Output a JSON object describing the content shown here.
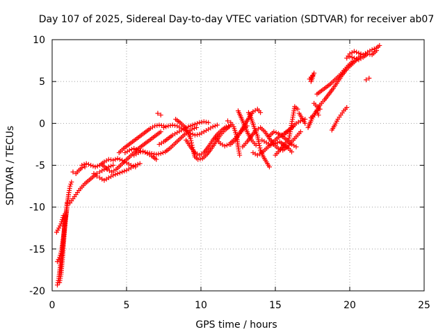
{
  "chart_data": {
    "type": "scatter",
    "title": "Day 107 of 2025, Sidereal Day-to-day VTEC variation (SDTVAR) for receiver ab07",
    "xlabel": "GPS time / hours",
    "ylabel": "SDTVAR / TECUs",
    "xlim": [
      0,
      25
    ],
    "ylim": [
      -20,
      10
    ],
    "xticks": [
      0,
      5,
      10,
      15,
      20,
      25
    ],
    "yticks": [
      -20,
      -15,
      -10,
      -5,
      0,
      5,
      10
    ],
    "grid": true,
    "legend": "none",
    "marker": "plus",
    "color": "#ff0000",
    "tracks": [
      [
        [
          0.35,
          -19.3
        ],
        [
          0.45,
          -18.5
        ],
        [
          0.55,
          -17.0
        ],
        [
          0.65,
          -15.5
        ],
        [
          0.75,
          -14.0
        ],
        [
          0.85,
          -12.0
        ],
        [
          0.95,
          -10.5
        ],
        [
          1.0,
          -9.5
        ]
      ],
      [
        [
          0.5,
          -19.0
        ],
        [
          0.6,
          -18.0
        ],
        [
          0.7,
          -16.0
        ],
        [
          0.8,
          -13.5
        ],
        [
          0.9,
          -11.5
        ],
        [
          1.0,
          -10.0
        ],
        [
          1.1,
          -8.5
        ],
        [
          1.2,
          -7.5
        ],
        [
          1.3,
          -7.0
        ]
      ],
      [
        [
          0.3,
          -13.0
        ],
        [
          0.45,
          -12.5
        ],
        [
          0.6,
          -12.0
        ],
        [
          0.75,
          -11.0
        ]
      ],
      [
        [
          0.35,
          -16.5
        ],
        [
          0.5,
          -16.0
        ],
        [
          0.65,
          -15.0
        ],
        [
          0.8,
          -13.0
        ],
        [
          0.9,
          -11.0
        ]
      ],
      [
        [
          1.2,
          -9.5
        ],
        [
          1.4,
          -9.0
        ],
        [
          1.6,
          -8.5
        ],
        [
          1.8,
          -8.0
        ],
        [
          2.0,
          -7.6
        ],
        [
          2.2,
          -7.2
        ],
        [
          2.4,
          -6.9
        ],
        [
          2.6,
          -6.6
        ],
        [
          2.8,
          -6.3
        ],
        [
          3.0,
          -6.0
        ],
        [
          3.2,
          -5.8
        ],
        [
          3.5,
          -5.5
        ],
        [
          3.8,
          -5.2
        ],
        [
          4.1,
          -5.0
        ]
      ],
      [
        [
          1.4,
          -5.8
        ],
        [
          1.6,
          -6.0
        ],
        [
          1.8,
          -5.6
        ],
        [
          2.0,
          -5.3
        ],
        [
          2.2,
          -5.2
        ]
      ],
      [
        [
          2.0,
          -5.0
        ],
        [
          2.3,
          -4.8
        ],
        [
          2.6,
          -5.0
        ],
        [
          2.9,
          -5.2
        ],
        [
          3.2,
          -5.0
        ],
        [
          3.5,
          -4.6
        ],
        [
          3.8,
          -4.3
        ],
        [
          4.1,
          -4.4
        ],
        [
          4.4,
          -4.2
        ],
        [
          4.7,
          -4.4
        ],
        [
          5.0,
          -4.7
        ],
        [
          5.3,
          -5.0
        ],
        [
          5.6,
          -5.2
        ]
      ],
      [
        [
          2.8,
          -6.0
        ],
        [
          3.0,
          -6.3
        ],
        [
          3.2,
          -6.5
        ],
        [
          3.5,
          -6.8
        ],
        [
          3.8,
          -6.5
        ],
        [
          4.1,
          -6.2
        ],
        [
          4.4,
          -6.0
        ],
        [
          4.7,
          -5.8
        ],
        [
          5.0,
          -5.6
        ],
        [
          5.3,
          -5.3
        ],
        [
          5.6,
          -5.0
        ],
        [
          5.9,
          -4.8
        ]
      ],
      [
        [
          3.4,
          -5.0
        ],
        [
          3.7,
          -5.5
        ],
        [
          4.0,
          -5.8
        ],
        [
          4.3,
          -5.5
        ],
        [
          4.6,
          -5.0
        ],
        [
          4.9,
          -4.5
        ],
        [
          5.2,
          -4.0
        ],
        [
          5.5,
          -3.5
        ],
        [
          5.8,
          -3.0
        ],
        [
          6.1,
          -2.6
        ],
        [
          6.4,
          -2.2
        ],
        [
          6.7,
          -1.8
        ],
        [
          7.0,
          -1.4
        ],
        [
          7.3,
          -1.0
        ]
      ],
      [
        [
          4.5,
          -3.5
        ],
        [
          4.8,
          -3.0
        ],
        [
          5.1,
          -2.6
        ],
        [
          5.4,
          -2.2
        ],
        [
          5.7,
          -1.8
        ],
        [
          6.0,
          -1.4
        ],
        [
          6.3,
          -1.0
        ],
        [
          6.6,
          -0.6
        ],
        [
          6.9,
          -0.3
        ],
        [
          7.2,
          -0.2
        ],
        [
          7.5,
          -0.3
        ]
      ],
      [
        [
          4.9,
          -3.5
        ],
        [
          5.2,
          -3.2
        ],
        [
          5.5,
          -3.0
        ],
        [
          5.8,
          -3.2
        ],
        [
          6.1,
          -3.4
        ],
        [
          6.4,
          -3.5
        ],
        [
          6.7,
          -3.6
        ],
        [
          7.0,
          -3.7
        ],
        [
          7.3,
          -3.6
        ],
        [
          7.6,
          -3.4
        ],
        [
          7.9,
          -3.0
        ],
        [
          8.2,
          -2.5
        ],
        [
          8.5,
          -2.0
        ],
        [
          8.8,
          -1.5
        ],
        [
          9.1,
          -1.0
        ],
        [
          9.4,
          -0.7
        ],
        [
          9.7,
          -0.5
        ]
      ],
      [
        [
          5.5,
          -3.8
        ],
        [
          5.8,
          -3.5
        ],
        [
          6.1,
          -3.3
        ],
        [
          6.4,
          -3.6
        ],
        [
          6.7,
          -3.9
        ],
        [
          7.0,
          -4.3
        ]
      ],
      [
        [
          7.1,
          1.2
        ],
        [
          7.3,
          1.0
        ]
      ],
      [
        [
          7.5,
          -0.5
        ],
        [
          7.8,
          -0.3
        ],
        [
          8.1,
          -0.2
        ],
        [
          8.4,
          -0.3
        ],
        [
          8.7,
          -0.6
        ],
        [
          9.0,
          -0.9
        ],
        [
          9.3,
          -1.2
        ],
        [
          9.6,
          -1.4
        ],
        [
          9.9,
          -1.3
        ],
        [
          10.2,
          -1.0
        ],
        [
          10.5,
          -0.7
        ],
        [
          10.8,
          -0.4
        ],
        [
          11.1,
          -0.2
        ]
      ],
      [
        [
          7.2,
          -2.5
        ],
        [
          7.5,
          -2.2
        ],
        [
          7.8,
          -1.8
        ],
        [
          8.1,
          -1.4
        ],
        [
          8.4,
          -1.1
        ],
        [
          8.7,
          -0.8
        ],
        [
          9.0,
          -0.5
        ],
        [
          9.3,
          -0.3
        ],
        [
          9.6,
          -0.1
        ],
        [
          9.9,
          0.1
        ],
        [
          10.2,
          0.2
        ],
        [
          10.5,
          0.1
        ]
      ],
      [
        [
          8.3,
          0.5
        ],
        [
          8.6,
          0.1
        ],
        [
          8.9,
          -0.4
        ],
        [
          9.1,
          -1.0
        ],
        [
          9.3,
          -1.8
        ],
        [
          9.4,
          -2.6
        ],
        [
          9.5,
          -3.4
        ],
        [
          9.6,
          -4.0
        ],
        [
          9.8,
          -4.3
        ],
        [
          10.1,
          -4.2
        ],
        [
          10.4,
          -3.7
        ],
        [
          10.7,
          -3.0
        ],
        [
          11.0,
          -2.2
        ],
        [
          11.3,
          -1.4
        ],
        [
          11.6,
          -0.8
        ],
        [
          11.9,
          -0.4
        ]
      ],
      [
        [
          9.0,
          -2.0
        ],
        [
          9.3,
          -2.8
        ],
        [
          9.6,
          -3.5
        ],
        [
          9.9,
          -3.8
        ],
        [
          10.2,
          -3.5
        ],
        [
          10.5,
          -2.8
        ],
        [
          10.8,
          -2.0
        ],
        [
          11.1,
          -1.3
        ],
        [
          11.4,
          -0.8
        ],
        [
          11.7,
          -0.4
        ],
        [
          12.0,
          -0.2
        ]
      ],
      [
        [
          11.0,
          -1.8
        ],
        [
          11.3,
          -2.4
        ],
        [
          11.6,
          -2.7
        ],
        [
          11.9,
          -2.5
        ],
        [
          12.2,
          -2.0
        ],
        [
          12.5,
          -1.4
        ],
        [
          12.8,
          -0.8
        ],
        [
          13.1,
          -0.3
        ]
      ],
      [
        [
          11.8,
          0.3
        ],
        [
          12.0,
          0.1
        ],
        [
          12.2,
          -0.4
        ],
        [
          12.4,
          -1.5
        ],
        [
          12.5,
          -2.8
        ],
        [
          12.6,
          -3.8
        ]
      ],
      [
        [
          12.0,
          -2.5
        ],
        [
          12.3,
          -2.0
        ],
        [
          12.6,
          -1.2
        ],
        [
          12.9,
          -0.3
        ],
        [
          13.2,
          0.6
        ],
        [
          13.5,
          1.4
        ],
        [
          13.8,
          1.7
        ],
        [
          14.0,
          1.3
        ]
      ],
      [
        [
          12.5,
          1.5
        ],
        [
          12.8,
          0.3
        ],
        [
          13.1,
          -1.0
        ],
        [
          13.4,
          -2.0
        ],
        [
          13.7,
          -2.6
        ]
      ],
      [
        [
          12.8,
          -2.8
        ],
        [
          13.1,
          -2.2
        ],
        [
          13.4,
          -1.5
        ],
        [
          13.7,
          -0.8
        ],
        [
          14.0,
          -0.5
        ],
        [
          14.3,
          -1.0
        ],
        [
          14.6,
          -1.8
        ],
        [
          14.9,
          -2.5
        ],
        [
          15.2,
          -3.0
        ],
        [
          15.5,
          -3.2
        ],
        [
          15.8,
          -2.8
        ],
        [
          16.1,
          -2.2
        ],
        [
          16.4,
          -1.6
        ],
        [
          16.7,
          -1.0
        ]
      ],
      [
        [
          13.2,
          1.3
        ],
        [
          13.4,
          0.5
        ],
        [
          13.6,
          -0.6
        ],
        [
          13.8,
          -1.5
        ],
        [
          13.9,
          -2.4
        ],
        [
          14.0,
          -3.2
        ],
        [
          14.2,
          -4.0
        ],
        [
          14.4,
          -4.6
        ],
        [
          14.6,
          -5.2
        ]
      ],
      [
        [
          13.5,
          -3.5
        ],
        [
          13.8,
          -3.8
        ],
        [
          14.1,
          -3.5
        ],
        [
          14.4,
          -3.0
        ],
        [
          14.7,
          -2.5
        ],
        [
          15.0,
          -2.0
        ],
        [
          15.3,
          -1.5
        ],
        [
          15.6,
          -1.2
        ],
        [
          15.9,
          -0.8
        ],
        [
          16.2,
          -0.4
        ]
      ],
      [
        [
          14.1,
          -2.0
        ],
        [
          14.4,
          -2.3
        ],
        [
          14.7,
          -2.6
        ],
        [
          15.0,
          -2.4
        ],
        [
          15.3,
          -2.2
        ],
        [
          15.6,
          -2.6
        ],
        [
          15.9,
          -3.0
        ],
        [
          16.1,
          -3.4
        ]
      ],
      [
        [
          14.6,
          -1.5
        ],
        [
          14.9,
          -1.0
        ],
        [
          15.2,
          -1.2
        ],
        [
          15.5,
          -1.6
        ],
        [
          15.8,
          -2.0
        ],
        [
          16.1,
          -2.5
        ],
        [
          16.4,
          -2.8
        ]
      ],
      [
        [
          15.0,
          -3.8
        ],
        [
          15.3,
          -3.2
        ],
        [
          15.6,
          -2.5
        ],
        [
          15.9,
          -2.0
        ],
        [
          16.0,
          -1.0
        ],
        [
          16.1,
          0.0
        ],
        [
          16.2,
          1.0
        ],
        [
          16.3,
          2.0
        ],
        [
          16.5,
          1.7
        ]
      ],
      [
        [
          15.5,
          -1.5
        ],
        [
          15.8,
          -1.0
        ],
        [
          16.1,
          -0.5
        ],
        [
          16.4,
          0.0
        ],
        [
          16.7,
          0.3
        ],
        [
          17.0,
          0.5
        ]
      ],
      [
        [
          16.6,
          1.2
        ],
        [
          16.8,
          0.6
        ],
        [
          17.0,
          0.0
        ]
      ],
      [
        [
          17.3,
          5.3
        ],
        [
          17.5,
          5.7
        ],
        [
          17.6,
          6.0
        ],
        [
          17.4,
          5.0
        ]
      ],
      [
        [
          17.2,
          -0.5
        ],
        [
          17.4,
          0.3
        ],
        [
          17.6,
          1.0
        ],
        [
          17.8,
          1.6
        ],
        [
          18.0,
          2.2
        ],
        [
          18.3,
          2.8
        ],
        [
          18.6,
          3.5
        ],
        [
          18.9,
          4.2
        ],
        [
          19.2,
          5.0
        ],
        [
          19.5,
          5.8
        ],
        [
          19.8,
          6.5
        ],
        [
          20.1,
          7.0
        ],
        [
          20.4,
          7.5
        ],
        [
          20.7,
          8.0
        ]
      ],
      [
        [
          17.6,
          2.4
        ],
        [
          17.8,
          2.0
        ],
        [
          18.0,
          1.7
        ]
      ],
      [
        [
          17.8,
          3.5
        ],
        [
          18.1,
          3.9
        ],
        [
          18.4,
          4.3
        ],
        [
          18.7,
          4.7
        ],
        [
          19.0,
          5.2
        ],
        [
          19.3,
          5.7
        ],
        [
          19.6,
          6.3
        ],
        [
          19.9,
          6.9
        ],
        [
          20.2,
          7.4
        ]
      ],
      [
        [
          17.4,
          0.7
        ],
        [
          17.6,
          1.0
        ],
        [
          17.8,
          1.5
        ],
        [
          17.9,
          1.0
        ]
      ],
      [
        [
          18.8,
          -0.8
        ],
        [
          19.0,
          -0.2
        ],
        [
          19.2,
          0.5
        ],
        [
          19.4,
          1.0
        ],
        [
          19.6,
          1.5
        ],
        [
          19.8,
          1.9
        ]
      ],
      [
        [
          19.8,
          7.8
        ],
        [
          20.0,
          8.3
        ],
        [
          20.3,
          8.6
        ],
        [
          20.6,
          8.4
        ],
        [
          20.9,
          8.2
        ],
        [
          21.2,
          8.5
        ],
        [
          21.5,
          8.8
        ],
        [
          21.8,
          9.0
        ],
        [
          22.0,
          9.3
        ]
      ],
      [
        [
          20.0,
          8.0
        ],
        [
          20.3,
          7.8
        ],
        [
          20.6,
          7.6
        ],
        [
          20.9,
          7.9
        ],
        [
          21.2,
          8.3
        ],
        [
          21.5,
          8.2
        ],
        [
          21.8,
          8.7
        ]
      ],
      [
        [
          21.1,
          5.2
        ],
        [
          21.3,
          5.4
        ]
      ]
    ]
  }
}
